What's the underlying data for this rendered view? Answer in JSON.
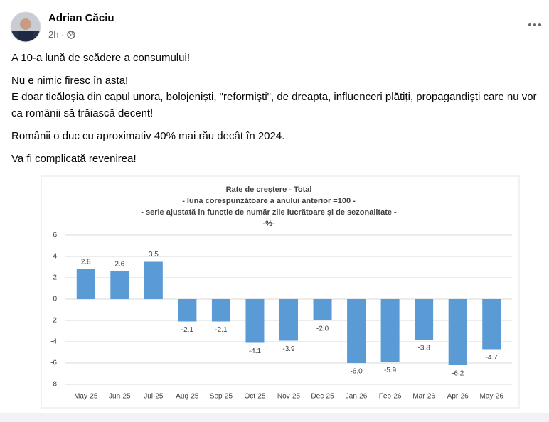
{
  "post": {
    "author": "Adrian Căciu",
    "time": "2h ·",
    "paragraphs": [
      [
        "A 10-a lună de scădere a consumului!"
      ],
      [
        "Nu e nimic firesc în asta!",
        "E doar ticăloșia din capul unora, bolojeniști, \"reformiști\", de dreapta, influenceri plătiți, propagandiști care nu vor ca românii să trăiască decent!"
      ],
      [
        "Românii o duc cu aproximativ 40% mai rău decât în 2024."
      ],
      [
        "Va fi complicată revenirea!"
      ]
    ]
  },
  "chart_data": {
    "type": "bar",
    "title": [
      "Rate de creștere - Total",
      "- luna corespunzătoare a anului anterior =100 -",
      "- serie ajustată în funcție de număr zile lucrătoare și de sezonalitate -",
      "-%-"
    ],
    "categories": [
      "May-25",
      "Jun-25",
      "Jul-25",
      "Aug-25",
      "Sep-25",
      "Oct-25",
      "Nov-25",
      "Dec-25",
      "Jan-26",
      "Feb-26",
      "Mar-26",
      "Apr-26",
      "May-26"
    ],
    "values": [
      2.8,
      2.6,
      3.5,
      -2.1,
      -2.1,
      -4.1,
      -3.9,
      -2.0,
      -6.0,
      -5.9,
      -3.8,
      -6.2,
      -4.7
    ],
    "value_labels": [
      "2.8",
      "2.6",
      "3.5",
      "-2.1",
      "-2.1",
      "-4.1",
      "-3.9",
      "-2.0",
      "-6.0",
      "-5.9",
      "-3.8",
      "-6.2",
      "-4.7"
    ],
    "color": "#5b9bd5",
    "ylim": [
      -8,
      6
    ],
    "yticks": [
      6,
      4,
      2,
      0,
      -2,
      -4,
      -6,
      -8
    ],
    "grid": true
  }
}
